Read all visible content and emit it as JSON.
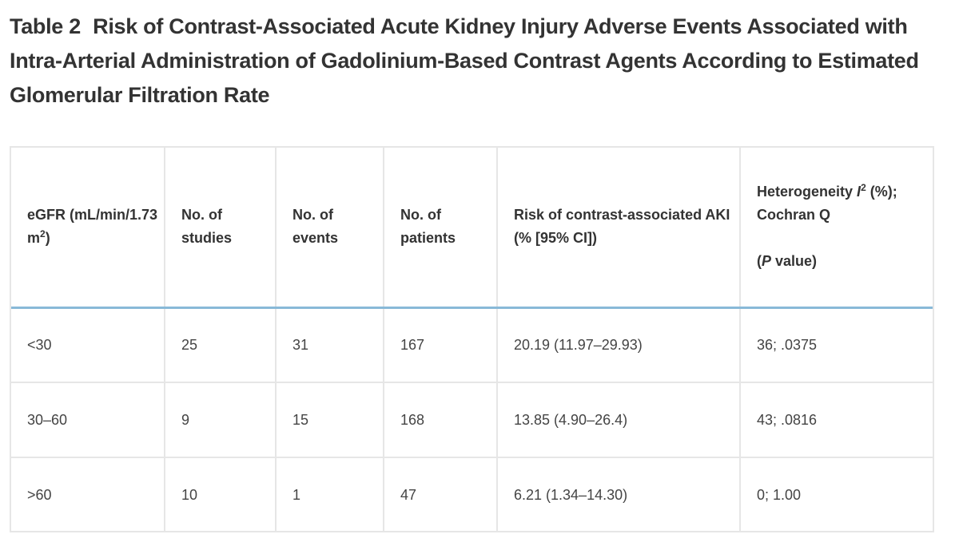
{
  "caption": {
    "label": "Table 2",
    "text": "Risk of Contrast-Associated Acute Kidney Injury Adverse Events Associated with Intra-Arterial Administration of Gadolinium-Based Contrast Agents According to Estimated Glomerular Filtration Rate"
  },
  "table": {
    "headers": {
      "egfr_main": "eGFR (mL/min/1.73",
      "egfr_m": "m",
      "egfr_sup": "2",
      "egfr_close": ")",
      "studies_1": "No. of",
      "studies_2": "studies",
      "events_1": "No. of",
      "events_2": "events",
      "patients_1": "No. of",
      "patients_2": "patients",
      "risk_1": "Risk of contrast-associated AKI",
      "risk_2": "(% [95% CI])",
      "het_1": "Heterogeneity ",
      "het_i": "I",
      "het_sup": "2",
      "het_1b": " (%);",
      "het_2": "Cochran Q",
      "het_3_open": "(",
      "het_3_p": "P",
      "het_3_rest": " value)"
    },
    "rows": [
      {
        "egfr": "<30",
        "studies": "25",
        "events": "31",
        "patients": "167",
        "risk": "20.19 (11.97–29.93)",
        "heterogeneity": "36; .0375"
      },
      {
        "egfr": "30–60",
        "studies": "9",
        "events": "15",
        "patients": "168",
        "risk": "13.85 (4.90–26.4)",
        "heterogeneity": "43; .0816"
      },
      {
        "egfr": ">60",
        "studies": "10",
        "events": "1",
        "patients": "47",
        "risk": "6.21 (1.34–14.30)",
        "heterogeneity": "0; 1.00"
      }
    ]
  }
}
